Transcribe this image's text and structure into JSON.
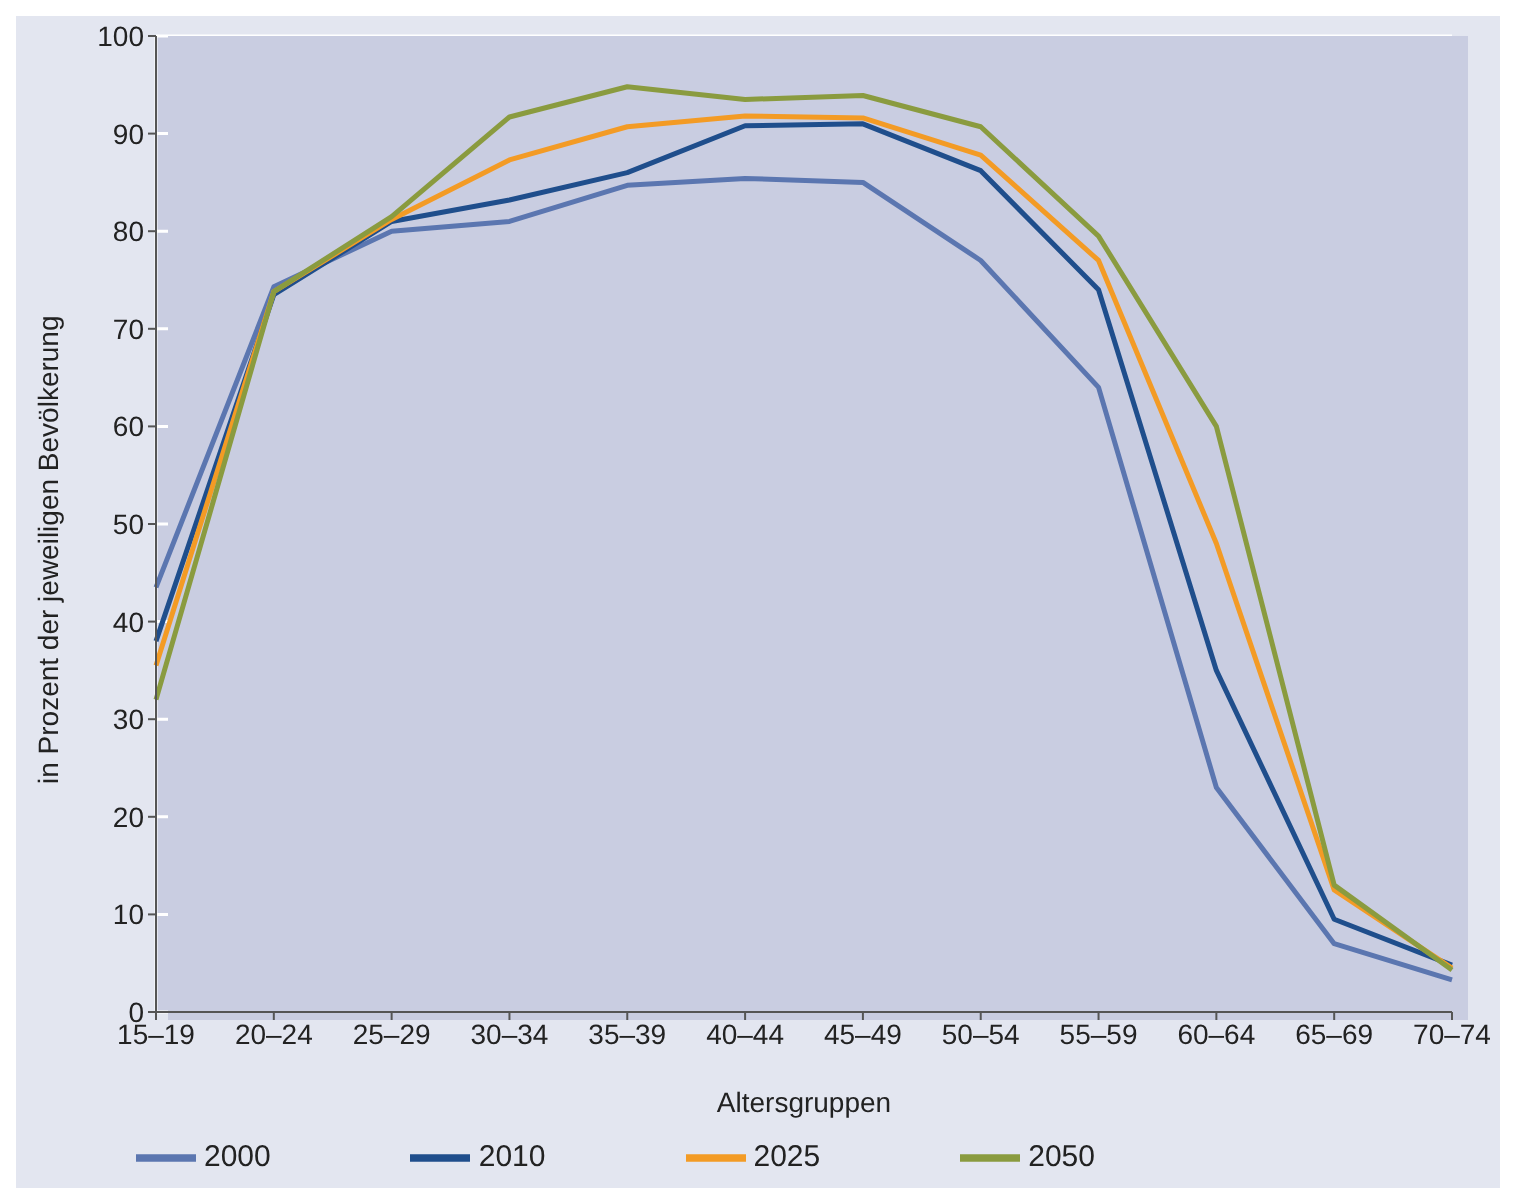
{
  "chart_data": {
    "type": "line",
    "xlabel": "Altersgruppen",
    "ylabel": "in Prozent der jeweiligen Bevölkerung",
    "categories": [
      "15–19",
      "20–24",
      "25–29",
      "30–34",
      "35–39",
      "40–44",
      "45–49",
      "50–54",
      "55–59",
      "60–64",
      "65–69",
      "70–74"
    ],
    "series": [
      {
        "name": "2000",
        "color": "#5b76b0",
        "values": [
          43.5,
          74.3,
          80,
          81,
          84.7,
          85.4,
          85,
          77,
          64,
          23,
          7,
          3.3
        ]
      },
      {
        "name": "2010",
        "color": "#1f4e8c",
        "values": [
          38,
          73.5,
          81,
          83.2,
          86,
          90.8,
          91,
          86.2,
          74,
          35,
          9.5,
          4.8
        ]
      },
      {
        "name": "2025",
        "color": "#f39b25",
        "values": [
          35.5,
          73.8,
          81.2,
          87.3,
          90.7,
          91.8,
          91.6,
          87.8,
          77,
          48,
          12.5,
          4.5
        ]
      },
      {
        "name": "2050",
        "color": "#8a9b3f",
        "values": [
          32,
          73.8,
          81.5,
          91.7,
          94.8,
          93.5,
          93.9,
          90.7,
          79.5,
          60,
          13,
          4.3
        ]
      }
    ],
    "ylim": [
      0,
      100
    ],
    "yticks": [
      0,
      10,
      20,
      30,
      40,
      50,
      60,
      70,
      80,
      90,
      100
    ],
    "grid": true,
    "legend": "bottom left",
    "marker": "none",
    "line_style": "solid"
  }
}
